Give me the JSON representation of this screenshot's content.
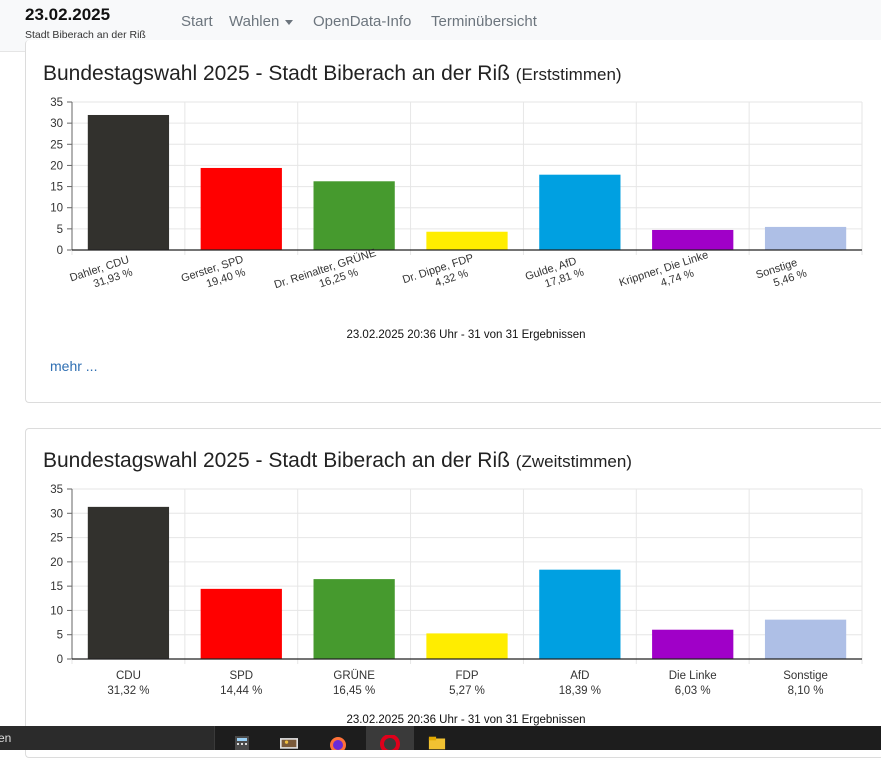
{
  "navbar": {
    "date": "23.02.2025",
    "subtitle": "Stadt Biberach an der Riß",
    "links": [
      "Start",
      "Wahlen",
      "OpenData-Info",
      "Terminübersicht"
    ]
  },
  "cards": [
    {
      "title_main": "Bundestagswahl 2025 - Stadt Biberach an der Riß",
      "title_sub": "(Erststimmen)",
      "footer": "23.02.2025 20:36 Uhr - 31 von 31 Ergebnissen",
      "more_label": "mehr ..."
    },
    {
      "title_main": "Bundestagswahl 2025 - Stadt Biberach an der Riß",
      "title_sub": "(Zweitstimmen)",
      "footer": "23.02.2025 20:36 Uhr - 31 von 31 Ergebnissen"
    }
  ],
  "chart_data": [
    {
      "type": "bar",
      "ylim": [
        0,
        35
      ],
      "yticks": [
        0,
        5,
        10,
        15,
        20,
        25,
        30,
        35
      ],
      "grid": true,
      "label_rotation": "rotated",
      "categories": [
        "Dahler, CDU",
        "Gerster, SPD",
        "Dr. Reinalter, GRÜNE",
        "Dr. Dippe, FDP",
        "Gulde, AfD",
        "Krippner, Die Linke",
        "Sonstige"
      ],
      "value_labels": [
        "31,93 %",
        "19,40 %",
        "16,25 %",
        "4,32 %",
        "17,81 %",
        "4,74 %",
        "5,46 %"
      ],
      "values": [
        31.93,
        19.4,
        16.25,
        4.32,
        17.81,
        4.74,
        5.46
      ],
      "colors": [
        "#32312d",
        "#ff0000",
        "#469a2e",
        "#ffed00",
        "#00a0e1",
        "#a000c8",
        "#aebfe6"
      ]
    },
    {
      "type": "bar",
      "ylim": [
        0,
        35
      ],
      "yticks": [
        0,
        5,
        10,
        15,
        20,
        25,
        30,
        35
      ],
      "grid": true,
      "label_rotation": "horizontal",
      "categories": [
        "CDU",
        "SPD",
        "GRÜNE",
        "FDP",
        "AfD",
        "Die Linke",
        "Sonstige"
      ],
      "value_labels": [
        "31,32 %",
        "14,44 %",
        "16,45 %",
        "5,27 %",
        "18,39 %",
        "6,03 %",
        "8,10 %"
      ],
      "values": [
        31.32,
        14.44,
        16.45,
        5.27,
        18.39,
        6.03,
        8.1
      ],
      "colors": [
        "#32312d",
        "#ff0000",
        "#469a2e",
        "#ffed00",
        "#00a0e1",
        "#a000c8",
        "#aebfe6"
      ]
    }
  ],
  "taskbar": {
    "search_text": "en",
    "apps": [
      "calculator-icon",
      "photos-icon",
      "firefox-icon",
      "opera-icon",
      "file-explorer-icon"
    ]
  }
}
